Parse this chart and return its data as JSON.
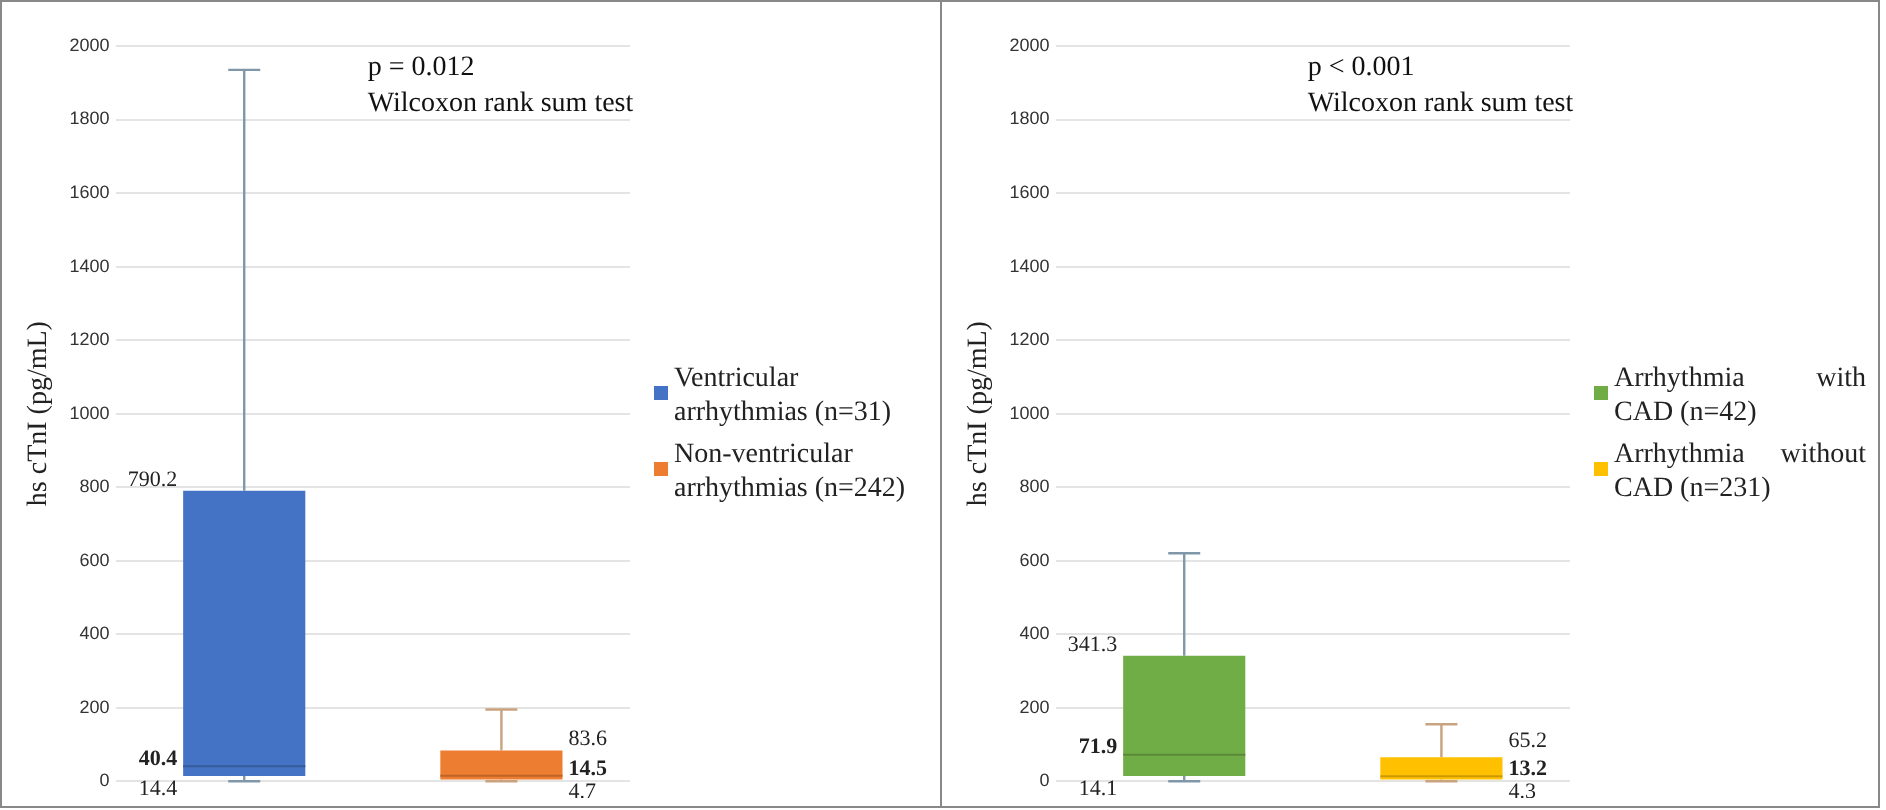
{
  "chart_data": [
    {
      "type": "box",
      "ylabel": "hs cTnI (pg/mL)",
      "categories": [
        null,
        null
      ],
      "ylim": [
        0,
        2000
      ],
      "yticks": [
        0,
        200,
        400,
        600,
        800,
        1000,
        1200,
        1400,
        1600,
        1800,
        2000
      ],
      "grid": "y",
      "legend": "right",
      "tick_labels": "y",
      "annotations": [
        "p = 0.012",
        "Wilcoxon rank sum test"
      ],
      "series": [
        {
          "name": "Ventricular arrhythmias (n=31)",
          "color": "#4472c4",
          "boxes": [
            {
              "low": 0,
              "q1": 14.4,
              "median": 40.4,
              "q3": 790.2,
              "high": 1935
            },
            null
          ],
          "value_labels": [
            [
              "14.4",
              "40.4",
              "790.2"
            ],
            null
          ]
        },
        {
          "name": "Non-ventricular arrhythmias (n=242)",
          "color": "#ed7d31",
          "boxes": [
            null,
            {
              "low": 0,
              "q1": 4.7,
              "median": 14.5,
              "q3": 83.6,
              "high": 195
            }
          ],
          "value_labels": [
            null,
            [
              "4.7",
              "14.5",
              "83.6"
            ]
          ]
        }
      ]
    },
    {
      "type": "box",
      "ylabel": "hs cTnI (pg/mL)",
      "categories": [
        null,
        null
      ],
      "ylim": [
        0,
        2000
      ],
      "yticks": [
        0,
        200,
        400,
        600,
        800,
        1000,
        1200,
        1400,
        1600,
        1800,
        2000
      ],
      "grid": "y",
      "legend": "right",
      "tick_labels": "y",
      "annotations": [
        "p < 0.001",
        "Wilcoxon rank sum test"
      ],
      "series": [
        {
          "name": "Arrhythmia with CAD (n=42)",
          "color": "#70ad47",
          "boxes": [
            {
              "low": 0,
              "q1": 14.1,
              "median": 71.9,
              "q3": 341.3,
              "high": 620
            },
            null
          ],
          "value_labels": [
            [
              "14.1",
              "71.9",
              "341.3"
            ],
            null
          ]
        },
        {
          "name": "Arrhythmia without CAD (n=231)",
          "color": "#ffc000",
          "boxes": [
            null,
            {
              "low": 0,
              "q1": 4.3,
              "median": 13.2,
              "q3": 65.2,
              "high": 155
            }
          ],
          "value_labels": [
            null,
            [
              "4.3",
              "13.2",
              "65.2"
            ]
          ]
        }
      ]
    }
  ]
}
